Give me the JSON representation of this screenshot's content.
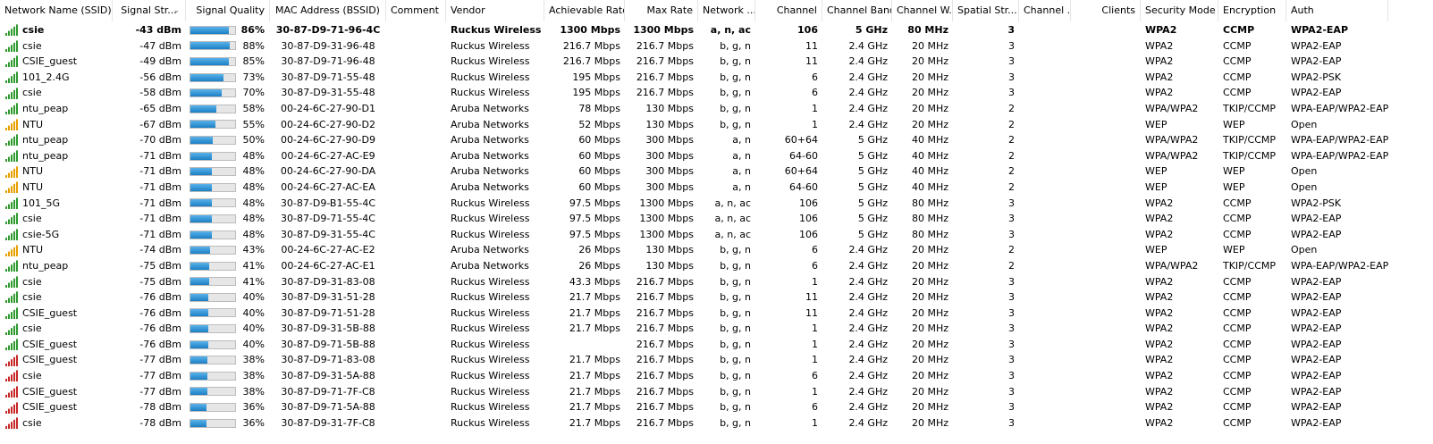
{
  "columns": [
    {
      "label": "Network Name (SSID)",
      "align": "left"
    },
    {
      "label": "Signal Str...",
      "align": "center"
    },
    {
      "label": "Signal Quality",
      "align": "right"
    },
    {
      "label": "MAC Address (BSSID)",
      "align": "center"
    },
    {
      "label": "Comment",
      "align": "left"
    },
    {
      "label": "Vendor",
      "align": "left"
    },
    {
      "label": "Achievable Rate",
      "align": "right"
    },
    {
      "label": "Max Rate",
      "align": "right"
    },
    {
      "label": "Network ...",
      "align": "right"
    },
    {
      "label": "Channel",
      "align": "right"
    },
    {
      "label": "Channel Band",
      "align": "right"
    },
    {
      "label": "Channel W...",
      "align": "right"
    },
    {
      "label": "Spatial Str...",
      "align": "right"
    },
    {
      "label": "Channel ...",
      "align": "right"
    },
    {
      "label": "Clients",
      "align": "right"
    },
    {
      "label": "Security Mode",
      "align": "left"
    },
    {
      "label": "Encryption",
      "align": "left"
    },
    {
      "label": "Auth",
      "align": "left"
    }
  ],
  "colors": {
    "bar_fill": "#1b7fc4",
    "signal_green": "#2e9a2e",
    "signal_orange": "#e8a000",
    "signal_red": "#c62828"
  },
  "rows": [
    {
      "ssid": "csie",
      "icon": "signal-green-icon",
      "bold": true,
      "signal": "-43 dBm",
      "quality": 86,
      "quality_label": "86%",
      "mac": "30-87-D9-71-96-4C",
      "comment": "",
      "vendor": "Ruckus Wireless",
      "ach": "1300 Mbps",
      "max": "1300 Mbps",
      "net": "a, n, ac",
      "channel": "106",
      "band": "5 GHz",
      "width": "80 MHz",
      "spatial": "3",
      "chan_extra": "",
      "clients": "",
      "sec": "WPA2",
      "enc": "CCMP",
      "auth": "WPA2-EAP"
    },
    {
      "ssid": "csie",
      "icon": "signal-green-icon",
      "signal": "-47 dBm",
      "quality": 88,
      "quality_label": "88%",
      "mac": "30-87-D9-31-96-48",
      "comment": "",
      "vendor": "Ruckus Wireless",
      "ach": "216.7 Mbps",
      "max": "216.7 Mbps",
      "net": "b, g, n",
      "channel": "11",
      "band": "2.4 GHz",
      "width": "20 MHz",
      "spatial": "3",
      "chan_extra": "",
      "clients": "",
      "sec": "WPA2",
      "enc": "CCMP",
      "auth": "WPA2-EAP"
    },
    {
      "ssid": "CSIE_guest",
      "icon": "signal-green-icon",
      "signal": "-49 dBm",
      "quality": 85,
      "quality_label": "85%",
      "mac": "30-87-D9-71-96-48",
      "comment": "",
      "vendor": "Ruckus Wireless",
      "ach": "216.7 Mbps",
      "max": "216.7 Mbps",
      "net": "b, g, n",
      "channel": "11",
      "band": "2.4 GHz",
      "width": "20 MHz",
      "spatial": "3",
      "chan_extra": "",
      "clients": "",
      "sec": "WPA2",
      "enc": "CCMP",
      "auth": "WPA2-EAP"
    },
    {
      "ssid": "101_2.4G",
      "icon": "signal-green-icon",
      "signal": "-56 dBm",
      "quality": 73,
      "quality_label": "73%",
      "mac": "30-87-D9-71-55-48",
      "comment": "",
      "vendor": "Ruckus Wireless",
      "ach": "195 Mbps",
      "max": "216.7 Mbps",
      "net": "b, g, n",
      "channel": "6",
      "band": "2.4 GHz",
      "width": "20 MHz",
      "spatial": "3",
      "chan_extra": "",
      "clients": "",
      "sec": "WPA2",
      "enc": "CCMP",
      "auth": "WPA2-PSK"
    },
    {
      "ssid": "csie",
      "icon": "signal-green-icon",
      "signal": "-58 dBm",
      "quality": 70,
      "quality_label": "70%",
      "mac": "30-87-D9-31-55-48",
      "comment": "",
      "vendor": "Ruckus Wireless",
      "ach": "195 Mbps",
      "max": "216.7 Mbps",
      "net": "b, g, n",
      "channel": "6",
      "band": "2.4 GHz",
      "width": "20 MHz",
      "spatial": "3",
      "chan_extra": "",
      "clients": "",
      "sec": "WPA2",
      "enc": "CCMP",
      "auth": "WPA2-EAP"
    },
    {
      "ssid": "ntu_peap",
      "icon": "signal-green-icon",
      "signal": "-65 dBm",
      "quality": 58,
      "quality_label": "58%",
      "mac": "00-24-6C-27-90-D1",
      "comment": "",
      "vendor": "Aruba Networks",
      "ach": "78 Mbps",
      "max": "130 Mbps",
      "net": "b, g, n",
      "channel": "1",
      "band": "2.4 GHz",
      "width": "20 MHz",
      "spatial": "2",
      "chan_extra": "",
      "clients": "",
      "sec": "WPA/WPA2",
      "enc": "TKIP/CCMP",
      "auth": "WPA-EAP/WPA2-EAP"
    },
    {
      "ssid": "NTU",
      "icon": "signal-orange-icon",
      "signal": "-67 dBm",
      "quality": 55,
      "quality_label": "55%",
      "mac": "00-24-6C-27-90-D2",
      "comment": "",
      "vendor": "Aruba Networks",
      "ach": "52 Mbps",
      "max": "130 Mbps",
      "net": "b, g, n",
      "channel": "1",
      "band": "2.4 GHz",
      "width": "20 MHz",
      "spatial": "2",
      "chan_extra": "",
      "clients": "",
      "sec": "WEP",
      "enc": "WEP",
      "auth": "Open"
    },
    {
      "ssid": "ntu_peap",
      "icon": "signal-green-icon",
      "signal": "-70 dBm",
      "quality": 50,
      "quality_label": "50%",
      "mac": "00-24-6C-27-90-D9",
      "comment": "",
      "vendor": "Aruba Networks",
      "ach": "60 Mbps",
      "max": "300 Mbps",
      "net": "a, n",
      "channel": "60+64",
      "band": "5 GHz",
      "width": "40 MHz",
      "spatial": "2",
      "chan_extra": "",
      "clients": "",
      "sec": "WPA/WPA2",
      "enc": "TKIP/CCMP",
      "auth": "WPA-EAP/WPA2-EAP"
    },
    {
      "ssid": "ntu_peap",
      "icon": "signal-green-icon",
      "signal": "-71 dBm",
      "quality": 48,
      "quality_label": "48%",
      "mac": "00-24-6C-27-AC-E9",
      "comment": "",
      "vendor": "Aruba Networks",
      "ach": "60 Mbps",
      "max": "300 Mbps",
      "net": "a, n",
      "channel": "64-60",
      "band": "5 GHz",
      "width": "40 MHz",
      "spatial": "2",
      "chan_extra": "",
      "clients": "",
      "sec": "WPA/WPA2",
      "enc": "TKIP/CCMP",
      "auth": "WPA-EAP/WPA2-EAP"
    },
    {
      "ssid": "NTU",
      "icon": "signal-orange-icon",
      "signal": "-71 dBm",
      "quality": 48,
      "quality_label": "48%",
      "mac": "00-24-6C-27-90-DA",
      "comment": "",
      "vendor": "Aruba Networks",
      "ach": "60 Mbps",
      "max": "300 Mbps",
      "net": "a, n",
      "channel": "60+64",
      "band": "5 GHz",
      "width": "40 MHz",
      "spatial": "2",
      "chan_extra": "",
      "clients": "",
      "sec": "WEP",
      "enc": "WEP",
      "auth": "Open"
    },
    {
      "ssid": "NTU",
      "icon": "signal-orange-icon",
      "signal": "-71 dBm",
      "quality": 48,
      "quality_label": "48%",
      "mac": "00-24-6C-27-AC-EA",
      "comment": "",
      "vendor": "Aruba Networks",
      "ach": "60 Mbps",
      "max": "300 Mbps",
      "net": "a, n",
      "channel": "64-60",
      "band": "5 GHz",
      "width": "40 MHz",
      "spatial": "2",
      "chan_extra": "",
      "clients": "",
      "sec": "WEP",
      "enc": "WEP",
      "auth": "Open"
    },
    {
      "ssid": "101_5G",
      "icon": "signal-green-icon",
      "signal": "-71 dBm",
      "quality": 48,
      "quality_label": "48%",
      "mac": "30-87-D9-B1-55-4C",
      "comment": "",
      "vendor": "Ruckus Wireless",
      "ach": "97.5 Mbps",
      "max": "1300 Mbps",
      "net": "a, n, ac",
      "channel": "106",
      "band": "5 GHz",
      "width": "80 MHz",
      "spatial": "3",
      "chan_extra": "",
      "clients": "",
      "sec": "WPA2",
      "enc": "CCMP",
      "auth": "WPA2-PSK"
    },
    {
      "ssid": "csie",
      "icon": "signal-green-icon",
      "signal": "-71 dBm",
      "quality": 48,
      "quality_label": "48%",
      "mac": "30-87-D9-71-55-4C",
      "comment": "",
      "vendor": "Ruckus Wireless",
      "ach": "97.5 Mbps",
      "max": "1300 Mbps",
      "net": "a, n, ac",
      "channel": "106",
      "band": "5 GHz",
      "width": "80 MHz",
      "spatial": "3",
      "chan_extra": "",
      "clients": "",
      "sec": "WPA2",
      "enc": "CCMP",
      "auth": "WPA2-EAP"
    },
    {
      "ssid": "csie-5G",
      "icon": "signal-green-icon",
      "signal": "-71 dBm",
      "quality": 48,
      "quality_label": "48%",
      "mac": "30-87-D9-31-55-4C",
      "comment": "",
      "vendor": "Ruckus Wireless",
      "ach": "97.5 Mbps",
      "max": "1300 Mbps",
      "net": "a, n, ac",
      "channel": "106",
      "band": "5 GHz",
      "width": "80 MHz",
      "spatial": "3",
      "chan_extra": "",
      "clients": "",
      "sec": "WPA2",
      "enc": "CCMP",
      "auth": "WPA2-EAP"
    },
    {
      "ssid": "NTU",
      "icon": "signal-orange-icon",
      "signal": "-74 dBm",
      "quality": 43,
      "quality_label": "43%",
      "mac": "00-24-6C-27-AC-E2",
      "comment": "",
      "vendor": "Aruba Networks",
      "ach": "26 Mbps",
      "max": "130 Mbps",
      "net": "b, g, n",
      "channel": "6",
      "band": "2.4 GHz",
      "width": "20 MHz",
      "spatial": "2",
      "chan_extra": "",
      "clients": "",
      "sec": "WEP",
      "enc": "WEP",
      "auth": "Open"
    },
    {
      "ssid": "ntu_peap",
      "icon": "signal-green-icon",
      "signal": "-75 dBm",
      "quality": 41,
      "quality_label": "41%",
      "mac": "00-24-6C-27-AC-E1",
      "comment": "",
      "vendor": "Aruba Networks",
      "ach": "26 Mbps",
      "max": "130 Mbps",
      "net": "b, g, n",
      "channel": "6",
      "band": "2.4 GHz",
      "width": "20 MHz",
      "spatial": "2",
      "chan_extra": "",
      "clients": "",
      "sec": "WPA/WPA2",
      "enc": "TKIP/CCMP",
      "auth": "WPA-EAP/WPA2-EAP"
    },
    {
      "ssid": "csie",
      "icon": "signal-green-icon",
      "signal": "-75 dBm",
      "quality": 41,
      "quality_label": "41%",
      "mac": "30-87-D9-31-83-08",
      "comment": "",
      "vendor": "Ruckus Wireless",
      "ach": "43.3 Mbps",
      "max": "216.7 Mbps",
      "net": "b, g, n",
      "channel": "1",
      "band": "2.4 GHz",
      "width": "20 MHz",
      "spatial": "3",
      "chan_extra": "",
      "clients": "",
      "sec": "WPA2",
      "enc": "CCMP",
      "auth": "WPA2-EAP"
    },
    {
      "ssid": "csie",
      "icon": "signal-green-icon",
      "signal": "-76 dBm",
      "quality": 40,
      "quality_label": "40%",
      "mac": "30-87-D9-31-51-28",
      "comment": "",
      "vendor": "Ruckus Wireless",
      "ach": "21.7 Mbps",
      "max": "216.7 Mbps",
      "net": "b, g, n",
      "channel": "11",
      "band": "2.4 GHz",
      "width": "20 MHz",
      "spatial": "3",
      "chan_extra": "",
      "clients": "",
      "sec": "WPA2",
      "enc": "CCMP",
      "auth": "WPA2-EAP"
    },
    {
      "ssid": "CSIE_guest",
      "icon": "signal-green-icon",
      "signal": "-76 dBm",
      "quality": 40,
      "quality_label": "40%",
      "mac": "30-87-D9-71-51-28",
      "comment": "",
      "vendor": "Ruckus Wireless",
      "ach": "21.7 Mbps",
      "max": "216.7 Mbps",
      "net": "b, g, n",
      "channel": "11",
      "band": "2.4 GHz",
      "width": "20 MHz",
      "spatial": "3",
      "chan_extra": "",
      "clients": "",
      "sec": "WPA2",
      "enc": "CCMP",
      "auth": "WPA2-EAP"
    },
    {
      "ssid": "csie",
      "icon": "signal-green-icon",
      "signal": "-76 dBm",
      "quality": 40,
      "quality_label": "40%",
      "mac": "30-87-D9-31-5B-88",
      "comment": "",
      "vendor": "Ruckus Wireless",
      "ach": "21.7 Mbps",
      "max": "216.7 Mbps",
      "net": "b, g, n",
      "channel": "1",
      "band": "2.4 GHz",
      "width": "20 MHz",
      "spatial": "3",
      "chan_extra": "",
      "clients": "",
      "sec": "WPA2",
      "enc": "CCMP",
      "auth": "WPA2-EAP"
    },
    {
      "ssid": "CSIE_guest",
      "icon": "signal-green-icon",
      "signal": "-76 dBm",
      "quality": 40,
      "quality_label": "40%",
      "mac": "30-87-D9-71-5B-88",
      "comment": "",
      "vendor": "Ruckus Wireless",
      "ach": "",
      "max": "216.7 Mbps",
      "net": "b, g, n",
      "channel": "1",
      "band": "2.4 GHz",
      "width": "20 MHz",
      "spatial": "3",
      "chan_extra": "",
      "clients": "",
      "sec": "WPA2",
      "enc": "CCMP",
      "auth": "WPA2-EAP"
    },
    {
      "ssid": "CSIE_guest",
      "icon": "signal-red-icon",
      "signal": "-77 dBm",
      "quality": 38,
      "quality_label": "38%",
      "mac": "30-87-D9-71-83-08",
      "comment": "",
      "vendor": "Ruckus Wireless",
      "ach": "21.7 Mbps",
      "max": "216.7 Mbps",
      "net": "b, g, n",
      "channel": "1",
      "band": "2.4 GHz",
      "width": "20 MHz",
      "spatial": "3",
      "chan_extra": "",
      "clients": "",
      "sec": "WPA2",
      "enc": "CCMP",
      "auth": "WPA2-EAP"
    },
    {
      "ssid": "csie",
      "icon": "signal-red-icon",
      "signal": "-77 dBm",
      "quality": 38,
      "quality_label": "38%",
      "mac": "30-87-D9-31-5A-88",
      "comment": "",
      "vendor": "Ruckus Wireless",
      "ach": "21.7 Mbps",
      "max": "216.7 Mbps",
      "net": "b, g, n",
      "channel": "6",
      "band": "2.4 GHz",
      "width": "20 MHz",
      "spatial": "3",
      "chan_extra": "",
      "clients": "",
      "sec": "WPA2",
      "enc": "CCMP",
      "auth": "WPA2-EAP"
    },
    {
      "ssid": "CSIE_guest",
      "icon": "signal-red-icon",
      "signal": "-77 dBm",
      "quality": 38,
      "quality_label": "38%",
      "mac": "30-87-D9-71-7F-C8",
      "comment": "",
      "vendor": "Ruckus Wireless",
      "ach": "21.7 Mbps",
      "max": "216.7 Mbps",
      "net": "b, g, n",
      "channel": "1",
      "band": "2.4 GHz",
      "width": "20 MHz",
      "spatial": "3",
      "chan_extra": "",
      "clients": "",
      "sec": "WPA2",
      "enc": "CCMP",
      "auth": "WPA2-EAP"
    },
    {
      "ssid": "CSIE_guest",
      "icon": "signal-red-icon",
      "signal": "-78 dBm",
      "quality": 36,
      "quality_label": "36%",
      "mac": "30-87-D9-71-5A-88",
      "comment": "",
      "vendor": "Ruckus Wireless",
      "ach": "21.7 Mbps",
      "max": "216.7 Mbps",
      "net": "b, g, n",
      "channel": "6",
      "band": "2.4 GHz",
      "width": "20 MHz",
      "spatial": "3",
      "chan_extra": "",
      "clients": "",
      "sec": "WPA2",
      "enc": "CCMP",
      "auth": "WPA2-EAP"
    },
    {
      "ssid": "csie",
      "icon": "signal-red-icon",
      "signal": "-78 dBm",
      "quality": 36,
      "quality_label": "36%",
      "mac": "30-87-D9-31-7F-C8",
      "comment": "",
      "vendor": "Ruckus Wireless",
      "ach": "21.7 Mbps",
      "max": "216.7 Mbps",
      "net": "b, g, n",
      "channel": "1",
      "band": "2.4 GHz",
      "width": "20 MHz",
      "spatial": "3",
      "chan_extra": "",
      "clients": "",
      "sec": "WPA2",
      "enc": "CCMP",
      "auth": "WPA2-EAP"
    }
  ]
}
